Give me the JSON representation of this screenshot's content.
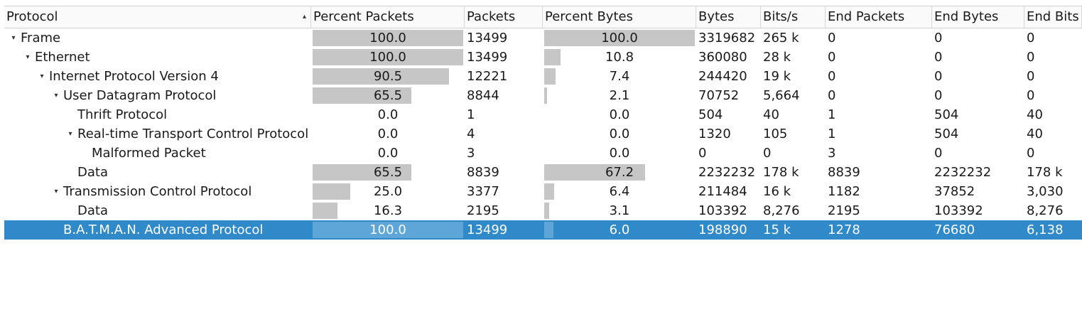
{
  "columns": [
    {
      "key": "protocol",
      "label": "Protocol"
    },
    {
      "key": "pct_packets",
      "label": "Percent Packets"
    },
    {
      "key": "packets",
      "label": "Packets"
    },
    {
      "key": "pct_bytes",
      "label": "Percent Bytes"
    },
    {
      "key": "bytes",
      "label": "Bytes"
    },
    {
      "key": "bits_s",
      "label": "Bits/s"
    },
    {
      "key": "end_packets",
      "label": "End Packets"
    },
    {
      "key": "end_bytes",
      "label": "End Bytes"
    },
    {
      "key": "end_bits",
      "label": "End Bits"
    }
  ],
  "sort_indicator": "▴",
  "rows": [
    {
      "protocol": "Frame",
      "level": 0,
      "expandable": true,
      "pct_packets": "100.0",
      "pct_packets_val": 100.0,
      "packets": "13499",
      "pct_bytes": "100.0",
      "pct_bytes_val": 100.0,
      "bytes": "3319682",
      "bits_s": "265 k",
      "end_packets": "0",
      "end_bytes": "0",
      "end_bits": "0"
    },
    {
      "protocol": "Ethernet",
      "level": 1,
      "expandable": true,
      "pct_packets": "100.0",
      "pct_packets_val": 100.0,
      "packets": "13499",
      "pct_bytes": "10.8",
      "pct_bytes_val": 10.8,
      "bytes": "360080",
      "bits_s": "28 k",
      "end_packets": "0",
      "end_bytes": "0",
      "end_bits": "0"
    },
    {
      "protocol": "Internet Protocol Version 4",
      "level": 2,
      "expandable": true,
      "pct_packets": "90.5",
      "pct_packets_val": 90.5,
      "packets": "12221",
      "pct_bytes": "7.4",
      "pct_bytes_val": 7.4,
      "bytes": "244420",
      "bits_s": "19 k",
      "end_packets": "0",
      "end_bytes": "0",
      "end_bits": "0"
    },
    {
      "protocol": "User Datagram Protocol",
      "level": 3,
      "expandable": true,
      "pct_packets": "65.5",
      "pct_packets_val": 65.5,
      "packets": "8844",
      "pct_bytes": "2.1",
      "pct_bytes_val": 2.1,
      "bytes": "70752",
      "bits_s": "5,664",
      "end_packets": "0",
      "end_bytes": "0",
      "end_bits": "0"
    },
    {
      "protocol": "Thrift Protocol",
      "level": 4,
      "expandable": false,
      "pct_packets": "0.0",
      "pct_packets_val": 0.0,
      "packets": "1",
      "pct_bytes": "0.0",
      "pct_bytes_val": 0.0,
      "bytes": "504",
      "bits_s": "40",
      "end_packets": "1",
      "end_bytes": "504",
      "end_bits": "40"
    },
    {
      "protocol": "Real-time Transport Control Protocol",
      "level": 4,
      "expandable": true,
      "pct_packets": "0.0",
      "pct_packets_val": 0.0,
      "packets": "4",
      "pct_bytes": "0.0",
      "pct_bytes_val": 0.0,
      "bytes": "1320",
      "bits_s": "105",
      "end_packets": "1",
      "end_bytes": "504",
      "end_bits": "40"
    },
    {
      "protocol": "Malformed Packet",
      "level": 5,
      "expandable": false,
      "pct_packets": "0.0",
      "pct_packets_val": 0.0,
      "packets": "3",
      "pct_bytes": "0.0",
      "pct_bytes_val": 0.0,
      "bytes": "0",
      "bits_s": "0",
      "end_packets": "3",
      "end_bytes": "0",
      "end_bits": "0"
    },
    {
      "protocol": "Data",
      "level": 4,
      "expandable": false,
      "pct_packets": "65.5",
      "pct_packets_val": 65.5,
      "packets": "8839",
      "pct_bytes": "67.2",
      "pct_bytes_val": 67.2,
      "bytes": "2232232",
      "bits_s": "178 k",
      "end_packets": "8839",
      "end_bytes": "2232232",
      "end_bits": "178 k"
    },
    {
      "protocol": "Transmission Control Protocol",
      "level": 3,
      "expandable": true,
      "pct_packets": "25.0",
      "pct_packets_val": 25.0,
      "packets": "3377",
      "pct_bytes": "6.4",
      "pct_bytes_val": 6.4,
      "bytes": "211484",
      "bits_s": "16 k",
      "end_packets": "1182",
      "end_bytes": "37852",
      "end_bits": "3,030"
    },
    {
      "protocol": "Data",
      "level": 4,
      "expandable": false,
      "pct_packets": "16.3",
      "pct_packets_val": 16.3,
      "packets": "2195",
      "pct_bytes": "3.1",
      "pct_bytes_val": 3.1,
      "bytes": "103392",
      "bits_s": "8,276",
      "end_packets": "2195",
      "end_bytes": "103392",
      "end_bits": "8,276"
    },
    {
      "protocol": "B.A.T.M.A.N. Advanced Protocol",
      "level": 3,
      "expandable": false,
      "selected": true,
      "pct_packets": "100.0",
      "pct_packets_val": 100.0,
      "packets": "13499",
      "pct_bytes": "6.0",
      "pct_bytes_val": 6.0,
      "bytes": "198890",
      "bits_s": "15 k",
      "end_packets": "1278",
      "end_bytes": "76680",
      "end_bits": "6,138"
    }
  ],
  "icons": {
    "expanded": "chevron-down-icon",
    "sort": "sort-ascending-icon"
  },
  "colors": {
    "bar": "#c6c6c6",
    "selection": "#3089c8",
    "selection_bar": "#5ea6d8"
  }
}
